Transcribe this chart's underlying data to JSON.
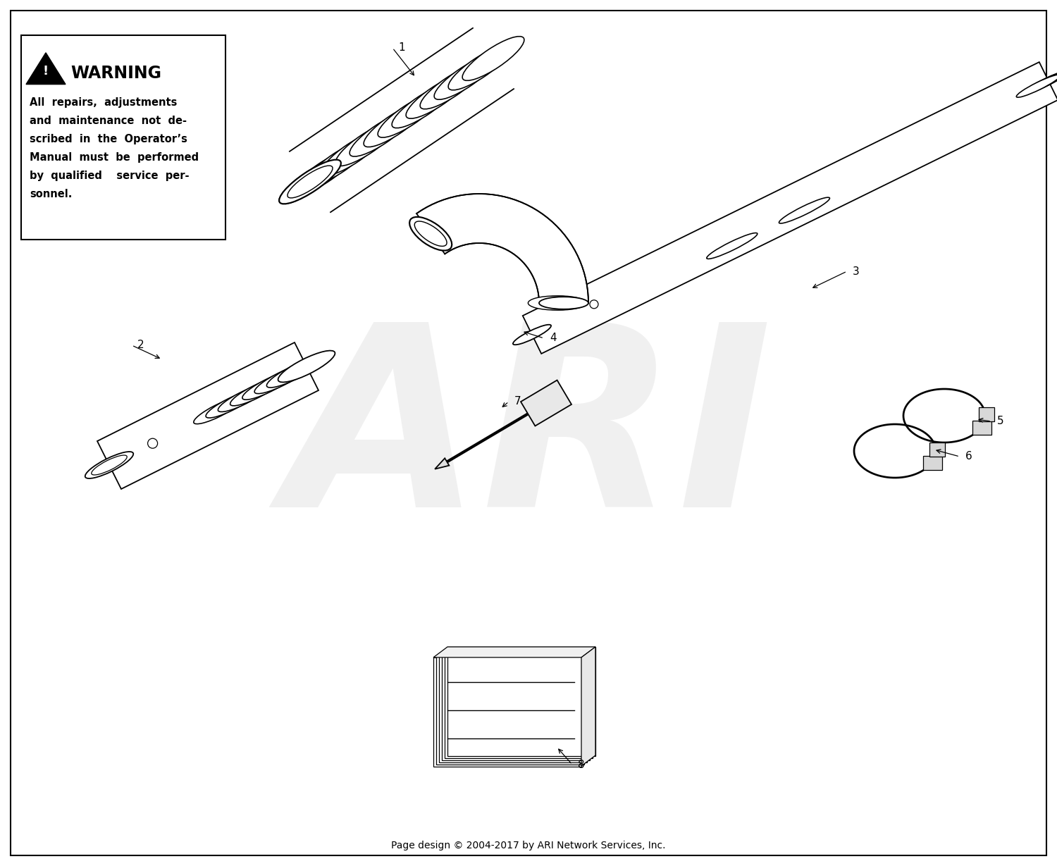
{
  "bg_color": "#ffffff",
  "border_color": "#000000",
  "fig_width": 15.0,
  "fig_height": 12.29,
  "warning_text": "WARNING",
  "warning_body": "All  repairs,  adjustments\nand  maintenance  not  de-\nscribed  in  the  Operator’s\nManual  must  be  performed\nby  qualified    service  per-\nsonnel.",
  "footer_text": "Page design © 2004-2017 by ARI Network Services, Inc.",
  "watermark": "ARI",
  "label_color": "#000000",
  "part_numbers": [
    "1",
    "2",
    "3",
    "4",
    "5",
    "6",
    "7",
    "8"
  ]
}
